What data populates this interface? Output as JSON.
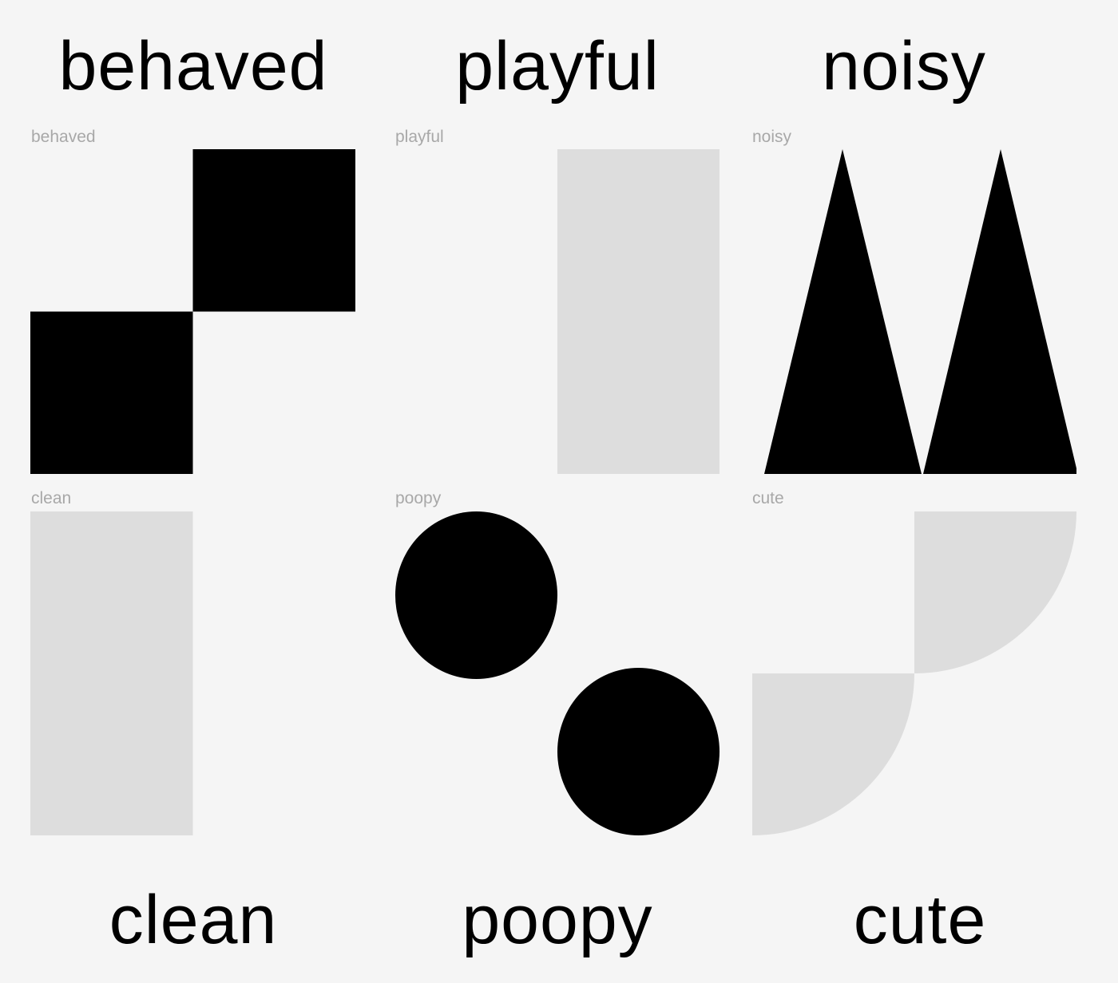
{
  "colors": {
    "background": "#f5f5f5",
    "shape_dark": "#000000",
    "shape_light": "#dddddd",
    "frame_label": "#a8a8a8"
  },
  "headings": {
    "behaved": "behaved",
    "playful": "playful",
    "noisy": "noisy",
    "clean": "clean",
    "poopy": "poopy",
    "cute": "cute"
  },
  "frames": {
    "behaved": {
      "label": "behaved",
      "shape": "two squares stepped diagonally"
    },
    "playful": {
      "label": "playful",
      "shape": "tall rectangle"
    },
    "noisy": {
      "label": "noisy",
      "shape": "two triangles"
    },
    "clean": {
      "label": "clean",
      "shape": "tall rectangle"
    },
    "poopy": {
      "label": "poopy",
      "shape": "two circles diagonal"
    },
    "cute": {
      "label": "cute",
      "shape": "two quarter circles"
    }
  }
}
